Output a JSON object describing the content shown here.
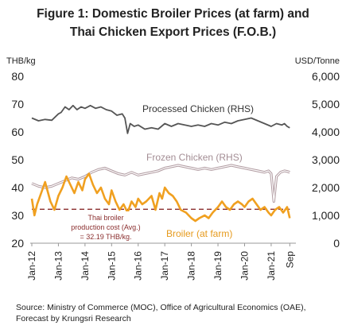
{
  "figure": {
    "title_line1": "Figure 1: Domestic Broiler Prices (at farm) and",
    "title_line2": "Thai Chicken Export Prices (F.O.B.)",
    "source_line1": "Source: Ministry of Commerce (MOC), Office of Agricultural Economics (OAE),",
    "source_line2": "Forecast by Krungsri Research"
  },
  "chart_data": {
    "type": "line",
    "left_axis": {
      "unit": "THB/kg",
      "ylim": [
        20,
        80
      ],
      "ticks": [
        "20",
        "30",
        "40",
        "50",
        "60",
        "70",
        "80"
      ]
    },
    "right_axis": {
      "unit": "USD/Tonne",
      "ylim": [
        0,
        6000
      ],
      "ticks": [
        "0",
        "1,000",
        "2,000",
        "3,000",
        "4,000",
        "5,000",
        "6,000"
      ]
    },
    "x_ticks": [
      "Jan-12",
      "Jan-13",
      "Jan-14",
      "Jan-15",
      "Jan-16",
      "Jan-17",
      "Jan-18",
      "Jan-19",
      "Jan-20",
      "Jan-21",
      "Sep"
    ],
    "grid": false,
    "series": [
      {
        "name": "Processed Chicken (RHS)",
        "axis": "right",
        "color": "#555555",
        "points": [
          [
            2012.0,
            4500
          ],
          [
            2012.25,
            4400
          ],
          [
            2012.5,
            4450
          ],
          [
            2012.75,
            4420
          ],
          [
            2013.0,
            4650
          ],
          [
            2013.1,
            4700
          ],
          [
            2013.25,
            4900
          ],
          [
            2013.4,
            4800
          ],
          [
            2013.55,
            4950
          ],
          [
            2013.7,
            4800
          ],
          [
            2013.85,
            4900
          ],
          [
            2014.0,
            4850
          ],
          [
            2014.2,
            4950
          ],
          [
            2014.4,
            4850
          ],
          [
            2014.6,
            4900
          ],
          [
            2014.8,
            4800
          ],
          [
            2015.0,
            4750
          ],
          [
            2015.2,
            4600
          ],
          [
            2015.4,
            4650
          ],
          [
            2015.5,
            4500
          ],
          [
            2015.6,
            3950
          ],
          [
            2015.7,
            4300
          ],
          [
            2015.85,
            4200
          ],
          [
            2016.0,
            4250
          ],
          [
            2016.25,
            4100
          ],
          [
            2016.5,
            4150
          ],
          [
            2016.75,
            4100
          ],
          [
            2017.0,
            4300
          ],
          [
            2017.25,
            4200
          ],
          [
            2017.5,
            4300
          ],
          [
            2017.75,
            4250
          ],
          [
            2018.0,
            4200
          ],
          [
            2018.25,
            4250
          ],
          [
            2018.5,
            4200
          ],
          [
            2018.75,
            4300
          ],
          [
            2019.0,
            4250
          ],
          [
            2019.25,
            4350
          ],
          [
            2019.5,
            4300
          ],
          [
            2019.75,
            4400
          ],
          [
            2020.0,
            4450
          ],
          [
            2020.25,
            4500
          ],
          [
            2020.5,
            4400
          ],
          [
            2020.75,
            4300
          ],
          [
            2021.0,
            4200
          ],
          [
            2021.2,
            4300
          ],
          [
            2021.4,
            4250
          ],
          [
            2021.5,
            4300
          ],
          [
            2021.6,
            4200
          ],
          [
            2021.7,
            4150
          ]
        ]
      },
      {
        "name": "Frozen Chicken (RHS)",
        "axis": "right",
        "color": "#b09aa0",
        "points": [
          [
            2012.0,
            2150
          ],
          [
            2012.25,
            2050
          ],
          [
            2012.5,
            2000
          ],
          [
            2012.75,
            2050
          ],
          [
            2013.0,
            2150
          ],
          [
            2013.25,
            2250
          ],
          [
            2013.5,
            2350
          ],
          [
            2013.75,
            2300
          ],
          [
            2014.0,
            2400
          ],
          [
            2014.25,
            2550
          ],
          [
            2014.5,
            2650
          ],
          [
            2014.75,
            2700
          ],
          [
            2015.0,
            2600
          ],
          [
            2015.25,
            2500
          ],
          [
            2015.5,
            2450
          ],
          [
            2015.75,
            2550
          ],
          [
            2016.0,
            2450
          ],
          [
            2016.25,
            2500
          ],
          [
            2016.5,
            2550
          ],
          [
            2016.75,
            2600
          ],
          [
            2017.0,
            2700
          ],
          [
            2017.25,
            2750
          ],
          [
            2017.5,
            2800
          ],
          [
            2017.75,
            2750
          ],
          [
            2018.0,
            2700
          ],
          [
            2018.25,
            2650
          ],
          [
            2018.5,
            2700
          ],
          [
            2018.75,
            2650
          ],
          [
            2019.0,
            2700
          ],
          [
            2019.25,
            2750
          ],
          [
            2019.5,
            2800
          ],
          [
            2019.75,
            2750
          ],
          [
            2020.0,
            2700
          ],
          [
            2020.25,
            2650
          ],
          [
            2020.5,
            2600
          ],
          [
            2020.75,
            2550
          ],
          [
            2020.9,
            2600
          ],
          [
            2021.0,
            2500
          ],
          [
            2021.1,
            1500
          ],
          [
            2021.2,
            2400
          ],
          [
            2021.35,
            2550
          ],
          [
            2021.5,
            2600
          ],
          [
            2021.6,
            2580
          ],
          [
            2021.7,
            2550
          ]
        ]
      },
      {
        "name": "Broiler (at farm)",
        "axis": "left",
        "color": "#f0a020",
        "points": [
          [
            2012.0,
            36
          ],
          [
            2012.1,
            30
          ],
          [
            2012.2,
            34
          ],
          [
            2012.35,
            38
          ],
          [
            2012.5,
            42
          ],
          [
            2012.7,
            35
          ],
          [
            2012.85,
            32
          ],
          [
            2013.0,
            37
          ],
          [
            2013.15,
            40
          ],
          [
            2013.3,
            44
          ],
          [
            2013.45,
            41
          ],
          [
            2013.6,
            38
          ],
          [
            2013.75,
            42
          ],
          [
            2013.9,
            39
          ],
          [
            2014.0,
            43
          ],
          [
            2014.15,
            45
          ],
          [
            2014.3,
            41
          ],
          [
            2014.45,
            38
          ],
          [
            2014.6,
            40
          ],
          [
            2014.75,
            36
          ],
          [
            2014.9,
            34
          ],
          [
            2015.0,
            39
          ],
          [
            2015.15,
            35
          ],
          [
            2015.3,
            32
          ],
          [
            2015.45,
            34
          ],
          [
            2015.6,
            31
          ],
          [
            2015.75,
            35
          ],
          [
            2015.9,
            33
          ],
          [
            2016.0,
            36
          ],
          [
            2016.15,
            34
          ],
          [
            2016.3,
            35
          ],
          [
            2016.5,
            37
          ],
          [
            2016.65,
            32
          ],
          [
            2016.8,
            38
          ],
          [
            2016.9,
            36
          ],
          [
            2017.0,
            40
          ],
          [
            2017.15,
            38
          ],
          [
            2017.3,
            37
          ],
          [
            2017.45,
            35
          ],
          [
            2017.6,
            32
          ],
          [
            2017.8,
            31
          ],
          [
            2018.0,
            29
          ],
          [
            2018.15,
            28
          ],
          [
            2018.3,
            29
          ],
          [
            2018.5,
            30
          ],
          [
            2018.65,
            29
          ],
          [
            2018.8,
            31
          ],
          [
            2019.0,
            33
          ],
          [
            2019.15,
            35
          ],
          [
            2019.3,
            33
          ],
          [
            2019.45,
            32
          ],
          [
            2019.6,
            34
          ],
          [
            2019.75,
            35
          ],
          [
            2019.9,
            34
          ],
          [
            2020.0,
            33
          ],
          [
            2020.15,
            35
          ],
          [
            2020.3,
            36
          ],
          [
            2020.45,
            34
          ],
          [
            2020.6,
            32
          ],
          [
            2020.75,
            33
          ],
          [
            2020.9,
            31
          ],
          [
            2021.0,
            30
          ],
          [
            2021.15,
            32
          ],
          [
            2021.3,
            33
          ],
          [
            2021.45,
            31
          ],
          [
            2021.6,
            33
          ],
          [
            2021.7,
            29
          ]
        ]
      },
      {
        "name": "Thai broiler production cost (Avg.) = 32.19 THB/kg.",
        "axis": "left",
        "color": "#8a2e2e",
        "style": "dashed",
        "points": [
          [
            2012.0,
            32.19
          ],
          [
            2021.7,
            32.19
          ]
        ]
      }
    ],
    "annotations": {
      "processed": "Processed Chicken (RHS)",
      "frozen": "Frozen Chicken (RHS)",
      "broiler": "Broiler (at farm)",
      "cost_line1": "Thai broiler",
      "cost_line2": "production cost (Avg.)",
      "cost_line3": "= 32.19 THB/kg."
    }
  }
}
